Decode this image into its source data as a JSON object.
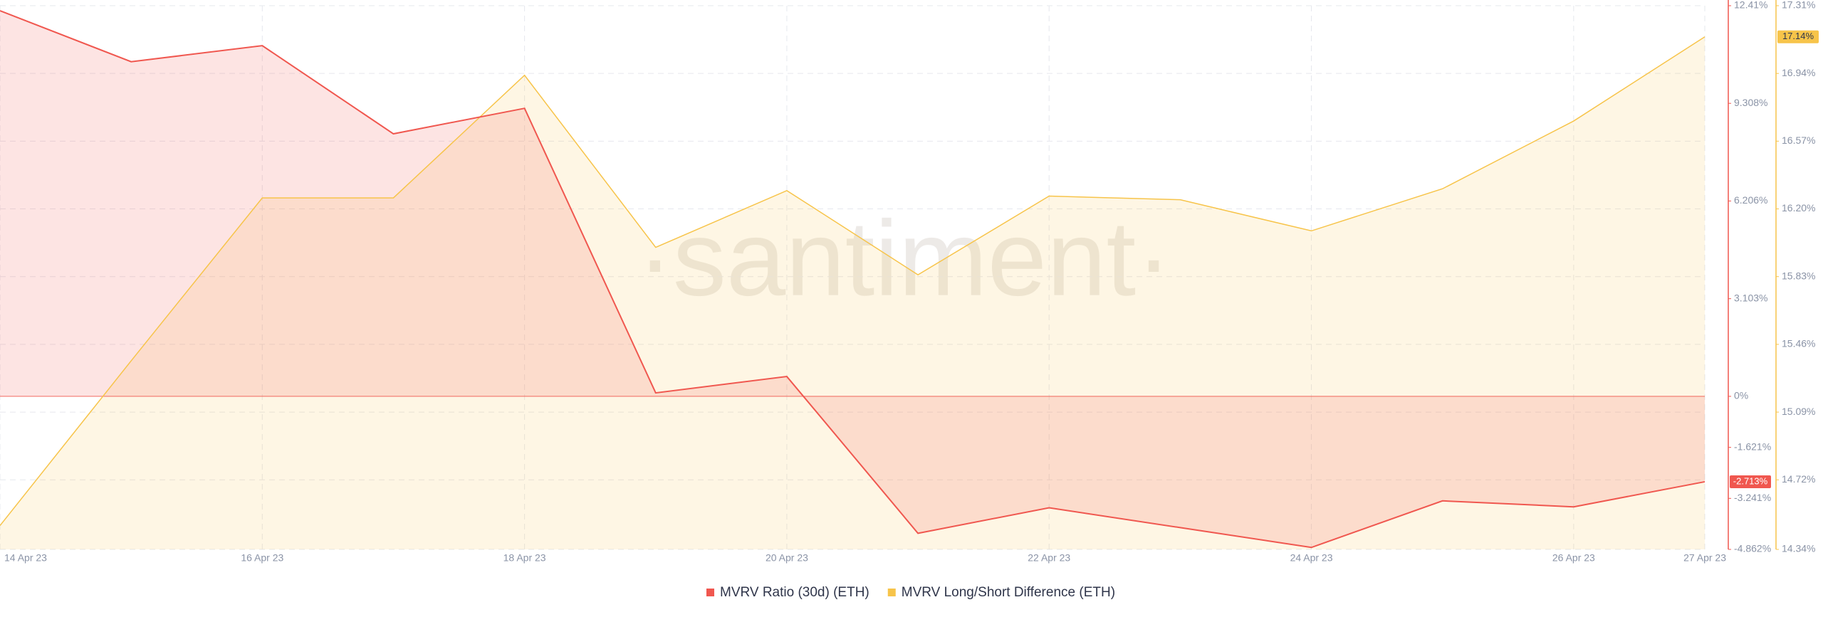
{
  "chart_data": {
    "type": "line",
    "watermark": "·santiment·",
    "categories": [
      "14 Apr 23",
      null,
      "16 Apr 23",
      null,
      "18 Apr 23",
      null,
      "20 Apr 23",
      null,
      "22 Apr 23",
      null,
      "24 Apr 23",
      null,
      "26 Apr 23",
      "27 Apr 23"
    ],
    "series": [
      {
        "name": "MVRV Ratio (30d) (ETH)",
        "color": "#f0574f",
        "axis": "y",
        "values": [
          12.25,
          10.63,
          11.14,
          8.34,
          9.15,
          0.11,
          0.63,
          -4.35,
          -3.54,
          -4.17,
          -4.8,
          -3.32,
          -3.51,
          -2.713
        ],
        "value_labels": [
          null,
          null,
          null,
          null,
          null,
          null,
          null,
          null,
          null,
          null,
          null,
          null,
          null,
          "-2.713%"
        ]
      },
      {
        "name": "MVRV Long/Short Difference (ETH)",
        "color": "#f7c44a",
        "axis": "y2",
        "values": [
          14.47,
          15.37,
          16.26,
          16.26,
          16.93,
          15.99,
          16.3,
          15.84,
          16.27,
          16.25,
          16.08,
          16.31,
          16.68,
          17.14
        ],
        "value_labels": [
          null,
          null,
          null,
          null,
          null,
          null,
          null,
          null,
          null,
          null,
          null,
          null,
          null,
          "17.14%"
        ]
      }
    ],
    "ylim": [
      -4.862,
      12.41
    ],
    "yticks": [
      {
        "value": 12.41,
        "label": "12.41%"
      },
      {
        "value": 9.308,
        "label": "9.308%"
      },
      {
        "value": 6.206,
        "label": "6.206%"
      },
      {
        "value": 3.103,
        "label": "3.103%"
      },
      {
        "value": 0,
        "label": "0%"
      },
      {
        "value": -1.621,
        "label": "-1.621%"
      },
      {
        "value": -3.241,
        "label": "-3.241%"
      },
      {
        "value": -4.862,
        "label": "-4.862%"
      }
    ],
    "y2lim": [
      14.34,
      17.31
    ],
    "y2ticks": [
      {
        "value": 17.31,
        "label": "17.31%"
      },
      {
        "value": 16.94,
        "label": "16.94%"
      },
      {
        "value": 16.57,
        "label": "16.57%"
      },
      {
        "value": 16.2,
        "label": "16.20%"
      },
      {
        "value": 15.83,
        "label": "15.83%"
      },
      {
        "value": 15.46,
        "label": "15.46%"
      },
      {
        "value": 15.09,
        "label": "15.09%"
      },
      {
        "value": 14.72,
        "label": "14.72%"
      },
      {
        "value": 14.34,
        "label": "14.34%"
      }
    ],
    "grid": true
  }
}
